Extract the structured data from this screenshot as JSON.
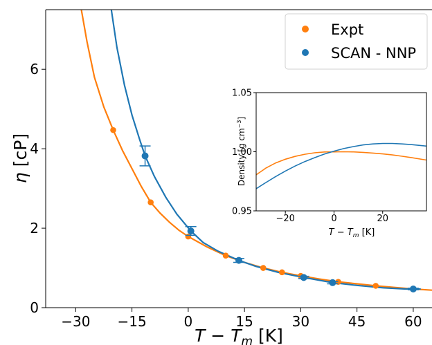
{
  "chart_data": [
    {
      "type": "line",
      "xlabel_main": "T − T",
      "xlabel_sub": "m",
      "xlabel_unit": " [K]",
      "ylabel_main": "η",
      "ylabel_unit": " [cP]",
      "xlim": [
        -38,
        65
      ],
      "ylim": [
        0,
        7.5
      ],
      "xticks": [
        -30,
        -15,
        0,
        15,
        30,
        45,
        60
      ],
      "xtick_labels": [
        "−30",
        "−15",
        "0",
        "15",
        "30",
        "45",
        "60"
      ],
      "yticks": [
        0,
        2,
        4,
        6
      ],
      "ytick_labels": [
        "0",
        "2",
        "4",
        "6"
      ],
      "grid": false,
      "legend_position": "top-right",
      "series": [
        {
          "name": "Expt",
          "color": "#ff7f0e",
          "points": [
            {
              "x": -20.0,
              "y": 4.47
            },
            {
              "x": -10.0,
              "y": 2.65
            },
            {
              "x": 0.0,
              "y": 1.79
            },
            {
              "x": 10.0,
              "y": 1.31
            },
            {
              "x": 20.0,
              "y": 1.0
            },
            {
              "x": 25.0,
              "y": 0.89
            },
            {
              "x": 30.0,
              "y": 0.8
            },
            {
              "x": 40.0,
              "y": 0.65
            },
            {
              "x": 50.0,
              "y": 0.55
            },
            {
              "x": 60.0,
              "y": 0.47
            }
          ],
          "curve": [
            {
              "x": -28.5,
              "y": 7.5
            },
            {
              "x": -27.0,
              "y": 6.7
            },
            {
              "x": -25.0,
              "y": 5.8
            },
            {
              "x": -22.5,
              "y": 5.05
            },
            {
              "x": -20.0,
              "y": 4.47
            },
            {
              "x": -17.5,
              "y": 3.95
            },
            {
              "x": -15.0,
              "y": 3.5
            },
            {
              "x": -12.5,
              "y": 3.05
            },
            {
              "x": -10.0,
              "y": 2.65
            },
            {
              "x": -7.5,
              "y": 2.38
            },
            {
              "x": -5.0,
              "y": 2.15
            },
            {
              "x": -2.5,
              "y": 1.95
            },
            {
              "x": 0.0,
              "y": 1.79
            },
            {
              "x": 5.0,
              "y": 1.53
            },
            {
              "x": 10.0,
              "y": 1.31
            },
            {
              "x": 15.0,
              "y": 1.14
            },
            {
              "x": 20.0,
              "y": 1.0
            },
            {
              "x": 25.0,
              "y": 0.89
            },
            {
              "x": 30.0,
              "y": 0.8
            },
            {
              "x": 35.0,
              "y": 0.72
            },
            {
              "x": 40.0,
              "y": 0.65
            },
            {
              "x": 45.0,
              "y": 0.6
            },
            {
              "x": 50.0,
              "y": 0.55
            },
            {
              "x": 55.0,
              "y": 0.51
            },
            {
              "x": 60.0,
              "y": 0.47
            },
            {
              "x": 65.0,
              "y": 0.44
            }
          ]
        },
        {
          "name": "SCAN - NNP",
          "color": "#1f77b4",
          "points": [
            {
              "x": -11.5,
              "y": 3.82,
              "err": 0.25
            },
            {
              "x": 0.7,
              "y": 1.93,
              "err": 0.11
            },
            {
              "x": 13.5,
              "y": 1.19,
              "err": 0.05
            },
            {
              "x": 30.8,
              "y": 0.76,
              "err": 0.03
            },
            {
              "x": 38.5,
              "y": 0.63,
              "err": 0.03
            },
            {
              "x": 60.0,
              "y": 0.47,
              "err": 0.02
            }
          ],
          "curve": [
            {
              "x": -20.5,
              "y": 7.5
            },
            {
              "x": -19.0,
              "y": 6.55
            },
            {
              "x": -17.0,
              "y": 5.6
            },
            {
              "x": -15.0,
              "y": 4.85
            },
            {
              "x": -13.0,
              "y": 4.25
            },
            {
              "x": -11.5,
              "y": 3.82
            },
            {
              "x": -9.0,
              "y": 3.3
            },
            {
              "x": -6.0,
              "y": 2.78
            },
            {
              "x": -3.0,
              "y": 2.35
            },
            {
              "x": 0.7,
              "y": 1.93
            },
            {
              "x": 4.0,
              "y": 1.64
            },
            {
              "x": 8.0,
              "y": 1.42
            },
            {
              "x": 13.5,
              "y": 1.19
            },
            {
              "x": 18.0,
              "y": 1.04
            },
            {
              "x": 24.0,
              "y": 0.89
            },
            {
              "x": 30.8,
              "y": 0.76
            },
            {
              "x": 38.5,
              "y": 0.63
            },
            {
              "x": 45.0,
              "y": 0.56
            },
            {
              "x": 52.0,
              "y": 0.5
            },
            {
              "x": 58.0,
              "y": 0.47
            },
            {
              "x": 62.0,
              "y": 0.47
            }
          ]
        }
      ]
    },
    {
      "type": "line",
      "xlabel_main": "T − T",
      "xlabel_sub": "m",
      "xlabel_unit": " [K]",
      "ylabel": "Density [g cm",
      "ylabel_sup": "−3",
      "ylabel_end": "]",
      "xlim": [
        -32,
        38
      ],
      "ylim": [
        0.95,
        1.05
      ],
      "xticks": [
        -20,
        0,
        20
      ],
      "xtick_labels": [
        "−20",
        "0",
        "20"
      ],
      "yticks": [
        0.95,
        1.0,
        1.05
      ],
      "ytick_labels": [
        "0.95",
        "1.00",
        "1.05"
      ],
      "grid": false,
      "series": [
        {
          "name": "Expt",
          "color": "#ff7f0e",
          "curve": [
            {
              "x": -32,
              "y": 0.9805
            },
            {
              "x": -28,
              "y": 0.9862
            },
            {
              "x": -24,
              "y": 0.9905
            },
            {
              "x": -20,
              "y": 0.9937
            },
            {
              "x": -16,
              "y": 0.9961
            },
            {
              "x": -12,
              "y": 0.9979
            },
            {
              "x": -8,
              "y": 0.9991
            },
            {
              "x": -4,
              "y": 0.9998
            },
            {
              "x": 0,
              "y": 0.9999
            },
            {
              "x": 4,
              "y": 1.0
            },
            {
              "x": 8,
              "y": 0.9999
            },
            {
              "x": 12,
              "y": 0.9995
            },
            {
              "x": 16,
              "y": 0.9989
            },
            {
              "x": 20,
              "y": 0.9982
            },
            {
              "x": 24,
              "y": 0.9973
            },
            {
              "x": 28,
              "y": 0.9962
            },
            {
              "x": 32,
              "y": 0.995
            },
            {
              "x": 38,
              "y": 0.993
            }
          ]
        },
        {
          "name": "SCAN - NNP",
          "color": "#1f77b4",
          "curve": [
            {
              "x": -32,
              "y": 0.9687
            },
            {
              "x": -28,
              "y": 0.974
            },
            {
              "x": -24,
              "y": 0.979
            },
            {
              "x": -20,
              "y": 0.9837
            },
            {
              "x": -16,
              "y": 0.9879
            },
            {
              "x": -12,
              "y": 0.9917
            },
            {
              "x": -8,
              "y": 0.995
            },
            {
              "x": -4,
              "y": 0.998
            },
            {
              "x": 0,
              "y": 1.0005
            },
            {
              "x": 4,
              "y": 1.0027
            },
            {
              "x": 8,
              "y": 1.0044
            },
            {
              "x": 12,
              "y": 1.0058
            },
            {
              "x": 16,
              "y": 1.0066
            },
            {
              "x": 20,
              "y": 1.007
            },
            {
              "x": 24,
              "y": 1.007
            },
            {
              "x": 28,
              "y": 1.0066
            },
            {
              "x": 32,
              "y": 1.006
            },
            {
              "x": 38,
              "y": 1.0048
            }
          ]
        }
      ]
    }
  ]
}
